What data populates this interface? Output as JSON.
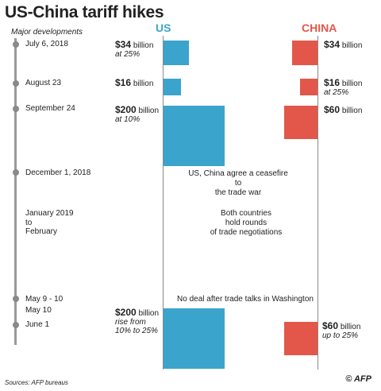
{
  "chart_data": {
    "type": "bar",
    "title": "US-China tariff hikes",
    "subtitle": "Major developments",
    "series": [
      {
        "name": "US",
        "color": "#3aa4cc"
      },
      {
        "name": "CHINA",
        "color": "#e3574a"
      }
    ],
    "events": [
      {
        "date": "July 6, 2018",
        "us": {
          "value": 34,
          "amount": "$34",
          "unit": "billion",
          "detail": "at 25%"
        },
        "china": {
          "value": 34,
          "amount": "$34",
          "unit": "billion",
          "detail": ""
        }
      },
      {
        "date": "August 23",
        "us": {
          "value": 16,
          "amount": "$16",
          "unit": "billion",
          "detail": ""
        },
        "china": {
          "value": 16,
          "amount": "$16",
          "unit": "billion",
          "detail": "at 25%"
        }
      },
      {
        "date": "September 24",
        "us": {
          "value": 200,
          "amount": "$200",
          "unit": "billion",
          "detail": "at 10%"
        },
        "china": {
          "value": 60,
          "amount": "$60",
          "unit": "billion",
          "detail": ""
        }
      },
      {
        "date": "December 1, 2018",
        "note": "US, China agree a ceasefire to the trade war"
      },
      {
        "date": "January 2019 to February",
        "note": "Both countries hold rounds of trade negotiations"
      },
      {
        "date": "May 9 - 10",
        "note": "No deal after trade talks in Washington"
      },
      {
        "date": "May 10",
        "us": {
          "value": 200,
          "amount": "$200",
          "unit": "billion",
          "detail": "rise from 10% to 25%"
        }
      },
      {
        "date": "June 1",
        "china": {
          "value": 60,
          "amount": "$60",
          "unit": "billion",
          "detail": "up to 25%"
        }
      }
    ]
  },
  "dates": {
    "d1": "July 6, 2018",
    "d2": "August 23",
    "d3": "September 24",
    "d4": "December 1, 2018",
    "d5a": "January 2019",
    "d5b": "to",
    "d5c": "February",
    "d6": "May 9 - 10",
    "d7": "May 10",
    "d8": "June 1"
  },
  "notes": {
    "ceasefire_1": "US, China agree a ceasefire to",
    "ceasefire_2": "the trade war",
    "talks_1": "Both countries",
    "talks_2": "hold rounds",
    "talks_3": "of trade negotiations",
    "nodeal": "No deal after trade talks in Washington"
  },
  "footer": {
    "source": "Sources: AFP bureaus",
    "credit": "© AFP"
  }
}
